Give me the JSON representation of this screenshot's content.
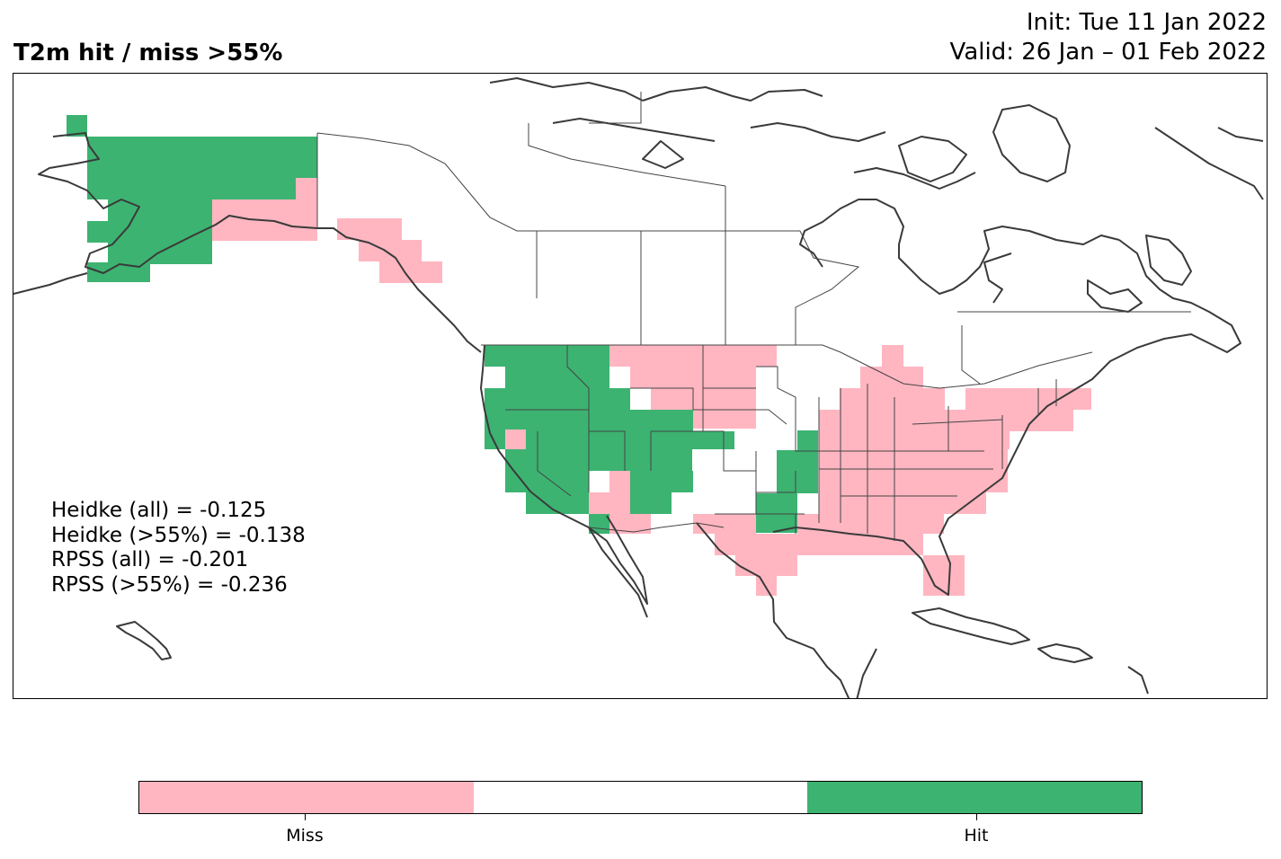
{
  "header": {
    "title": "T2m hit / miss  >55%",
    "init": "Init: Tue 11 Jan 2022",
    "valid": "Valid: 26 Jan – 01 Feb 2022"
  },
  "stats": [
    "Heidke (all) = -0.125",
    "Heidke (>55%) = -0.138",
    "RPSS (all) = -0.201",
    "RPSS (>55%) = -0.236"
  ],
  "colorbar": {
    "segments": [
      {
        "label": "Miss",
        "color": "#ffb6c1"
      },
      {
        "label": "",
        "color": "#ffffff"
      },
      {
        "label": "Hit",
        "color": "#3cb371"
      }
    ],
    "labels": [
      "Miss",
      "Hit"
    ]
  },
  "colors": {
    "miss": "#ffb6c1",
    "hit": "#3cb371",
    "coast": "#3a3a3a",
    "border": "#444444"
  }
}
